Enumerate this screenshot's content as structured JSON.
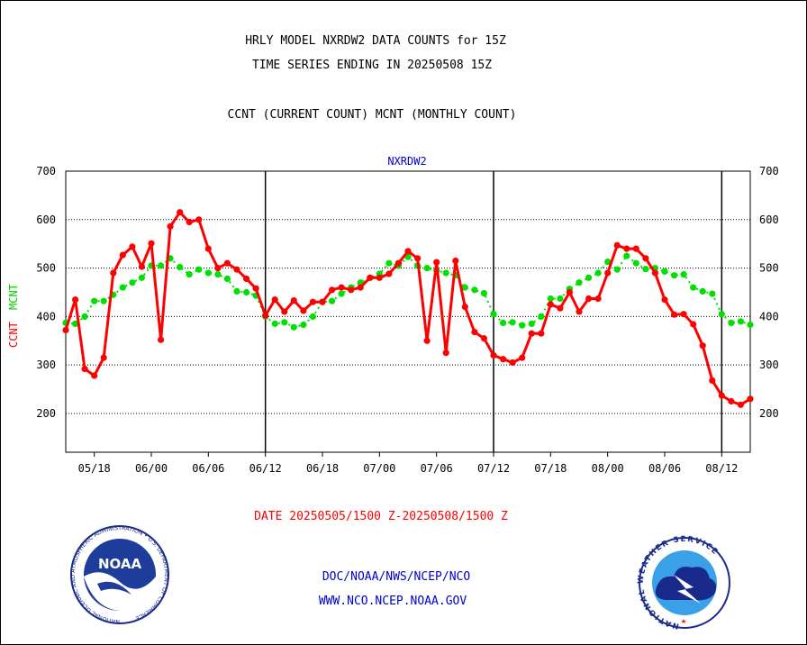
{
  "header": {
    "title_line1": "HRLY MODEL NXRDW2 DATA COUNTS for 15Z",
    "title_line2": "TIME SERIES ENDING IN 20250508 15Z",
    "legend_line": "CCNT (CURRENT COUNT) MCNT (MONTHLY COUNT)"
  },
  "footer": {
    "date_range": "DATE 20250505/1500 Z-20250508/1500 Z",
    "org_line": "DOC/NOAA/NWS/NCEP/NCO",
    "web_line": "WWW.NCO.NCEP.NOAA.GOV",
    "noaa_logo_text": "NOAA",
    "noaa_seal_text": "NATIONAL OCEANIC AND ATMOSPHERIC ADMINISTRATION • U.S. DEPARTMENT OF COMMERCE",
    "nws_seal_text": "NATIONAL WEATHER SERVICE"
  },
  "colors": {
    "ccnt": "#ff0000",
    "mcnt": "#00e000",
    "subtitle": "#0000cc",
    "footer_text": "#0000cc",
    "date_text": "#ff0000"
  },
  "chart_data": {
    "type": "line",
    "subtitle": "NXRDW2",
    "ylabel_ccnt": "CCNT",
    "ylabel_mcnt": "MCNT",
    "ylim": [
      120,
      700
    ],
    "yticks": [
      200,
      300,
      400,
      500,
      600,
      700
    ],
    "xlim": [
      0,
      72
    ],
    "x_tick_positions": [
      3,
      9,
      15,
      21,
      27,
      33,
      39,
      45,
      51,
      57,
      63,
      69
    ],
    "x_tick_labels": [
      "05/18",
      "06/00",
      "06/06",
      "06/12",
      "06/18",
      "07/00",
      "07/06",
      "07/12",
      "07/18",
      "08/00",
      "08/06",
      "08/12"
    ],
    "day_boundaries": [
      21,
      45,
      69
    ],
    "grid": "horizontal dotted",
    "series": [
      {
        "name": "CCNT",
        "x": [
          0,
          1,
          2,
          3,
          4,
          5,
          6,
          7,
          8,
          9,
          10,
          11,
          12,
          13,
          14,
          15,
          16,
          17,
          18,
          19,
          20,
          21,
          22,
          23,
          24,
          25,
          26,
          27,
          28,
          29,
          30,
          31,
          32,
          33,
          34,
          35,
          36,
          37,
          38,
          39,
          40,
          41,
          42,
          43,
          44,
          45,
          46,
          47,
          48,
          49,
          50,
          51,
          52,
          53,
          54,
          55,
          56,
          57,
          58,
          59,
          60,
          61,
          62,
          63,
          64,
          65,
          66,
          67,
          68,
          69,
          70,
          71,
          72
        ],
        "values": [
          372,
          435,
          292,
          278,
          315,
          490,
          527,
          544,
          503,
          551,
          352,
          586,
          615,
          595,
          600,
          540,
          500,
          510,
          497,
          478,
          458,
          402,
          435,
          410,
          433,
          412,
          430,
          430,
          455,
          460,
          455,
          460,
          480,
          480,
          488,
          510,
          535,
          520,
          350,
          512,
          325,
          515,
          420,
          368,
          355,
          320,
          312,
          305,
          315,
          365,
          365,
          425,
          417,
          450,
          410,
          437,
          437,
          490,
          547,
          540,
          540,
          520,
          490,
          435,
          404,
          405,
          384,
          340,
          268,
          237,
          225,
          218,
          230
        ]
      },
      {
        "name": "MCNT",
        "x": [
          0,
          1,
          2,
          3,
          4,
          5,
          6,
          7,
          8,
          9,
          10,
          11,
          12,
          13,
          14,
          15,
          16,
          17,
          18,
          19,
          20,
          21,
          22,
          23,
          24,
          25,
          26,
          27,
          28,
          29,
          30,
          31,
          32,
          33,
          34,
          35,
          36,
          37,
          38,
          39,
          40,
          41,
          42,
          43,
          44,
          45,
          46,
          47,
          48,
          49,
          50,
          51,
          52,
          53,
          54,
          55,
          56,
          57,
          58,
          59,
          60,
          61,
          62,
          63,
          64,
          65,
          66,
          67,
          68,
          69,
          70,
          71,
          72
        ],
        "values": [
          387,
          385,
          400,
          432,
          432,
          445,
          460,
          470,
          480,
          505,
          505,
          520,
          502,
          487,
          497,
          490,
          487,
          478,
          452,
          450,
          443,
          400,
          385,
          388,
          378,
          383,
          400,
          430,
          432,
          447,
          460,
          470,
          480,
          488,
          510,
          505,
          523,
          505,
          500,
          495,
          490,
          485,
          460,
          455,
          448,
          405,
          387,
          388,
          382,
          385,
          400,
          437,
          437,
          457,
          470,
          480,
          490,
          513,
          497,
          525,
          510,
          498,
          500,
          493,
          485,
          487,
          460,
          452,
          447,
          405,
          387,
          390,
          383
        ]
      }
    ]
  }
}
